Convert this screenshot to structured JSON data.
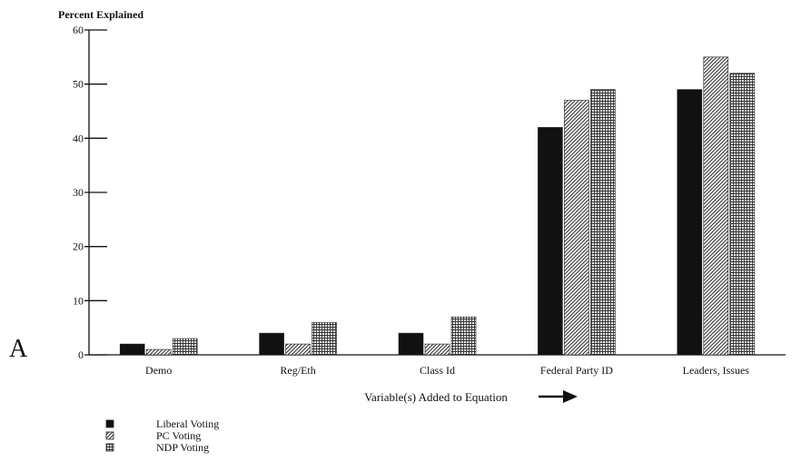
{
  "chart_data": {
    "type": "bar",
    "panel_label": "A",
    "ylabel": "Percent Explained",
    "xlabel": "Variable(s) Added to Equation",
    "ylim": [
      0,
      60
    ],
    "yticks": [
      0,
      10,
      20,
      30,
      40,
      50,
      60
    ],
    "grid": false,
    "legend_position": "bottom-left",
    "categories": [
      "Demo",
      "Reg/Eth",
      "Class Id",
      "Federal Party ID",
      "Leaders, Issues"
    ],
    "series": [
      {
        "name": "Liberal Voting",
        "pattern": "solid",
        "color": "#111111",
        "values": [
          2,
          4,
          4,
          42,
          49
        ]
      },
      {
        "name": "PC Voting",
        "pattern": "diagonal-hatch",
        "color": "#444444",
        "values": [
          1,
          2,
          2,
          47,
          55
        ]
      },
      {
        "name": "NDP Voting",
        "pattern": "crosshatch",
        "color": "#444444",
        "values": [
          3,
          6,
          7,
          49,
          52
        ]
      }
    ]
  }
}
